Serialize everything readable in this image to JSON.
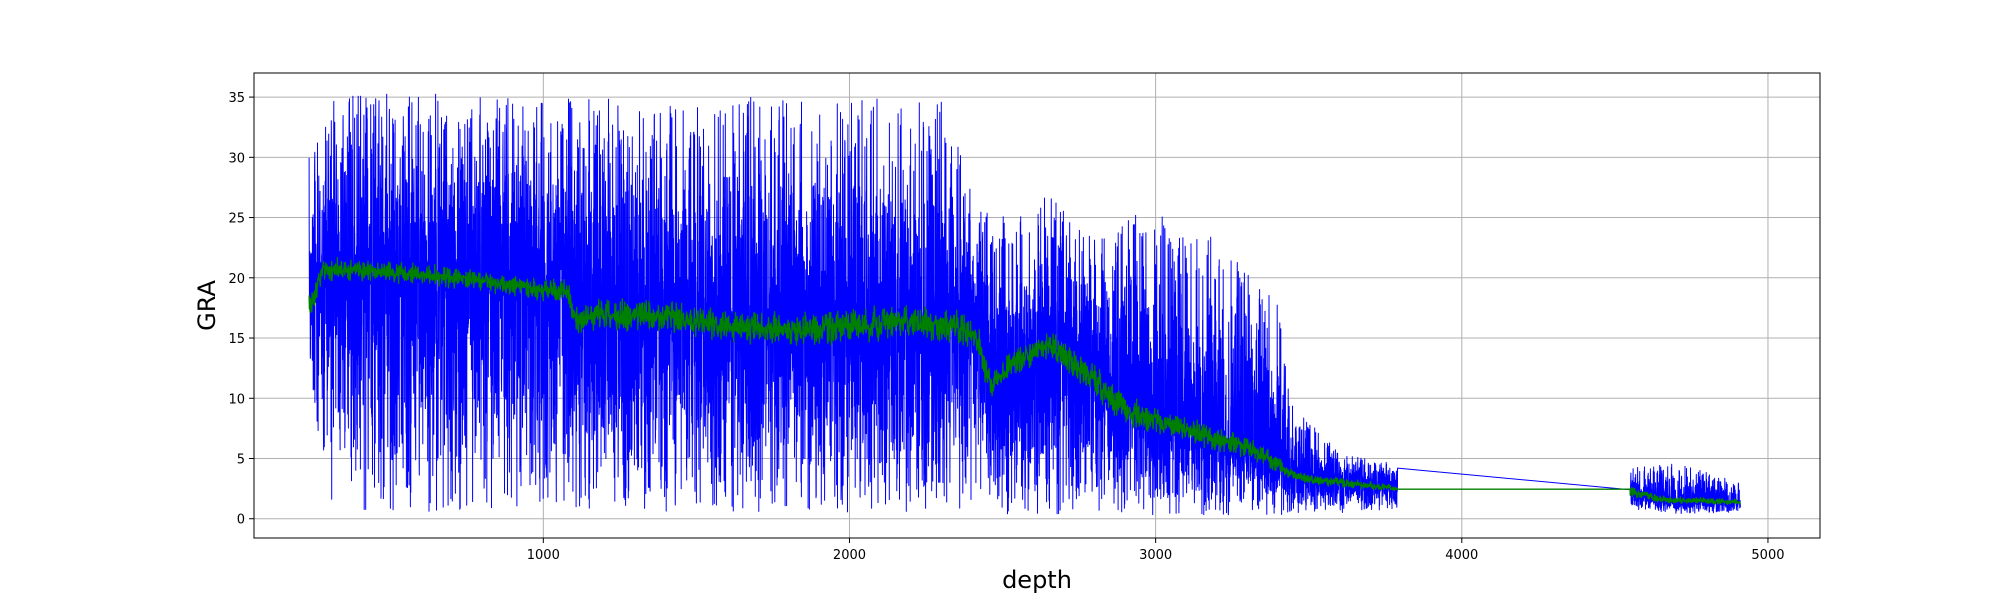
{
  "chart_data": {
    "type": "line",
    "title": "",
    "xlabel": "depth",
    "ylabel": "GRA",
    "xlim": [
      55,
      5170
    ],
    "ylim": [
      -1.6,
      37.0
    ],
    "xticks": [
      1000,
      2000,
      3000,
      4000,
      5000
    ],
    "yticks": [
      0,
      5,
      10,
      15,
      20,
      25,
      30,
      35
    ],
    "grid": true,
    "legend": "none",
    "series": [
      {
        "color": "#0000ff",
        "style": "noisy-raw-signal",
        "segments": [
          {
            "x_start": 235,
            "x_end": 3790,
            "trend_x": [
              235,
              300,
              600,
              900,
              1080,
              1100,
              1400,
              1600,
              2000,
              2300,
              2420,
              2450,
              2650,
              2800,
              3000,
              3200,
              3400,
              3450,
              3600,
              3790
            ],
            "trend_y": [
              18.5,
              21,
              20.5,
              20,
              19.5,
              17.5,
              17,
              16,
              16.5,
              16.5,
              16,
              11,
              14.5,
              11,
              8,
              6.5,
              5,
              3.6,
              3,
              2.8
            ],
            "min_envelope": [
              11,
              0.4,
              0.5,
              0.5,
              1.5,
              0.5,
              0.5,
              0.5,
              0.5,
              0.5,
              0.5,
              0.4,
              0.3,
              0.3,
              0.3,
              0.3,
              0.3,
              0.5,
              0.5,
              0.8
            ],
            "max_envelope": [
              30,
              35.3,
              35.3,
              35.3,
              35.0,
              35.0,
              35.0,
              35.0,
              35.0,
              35.0,
              27.0,
              25.5,
              27.0,
              23.5,
              26.0,
              23.5,
              18.0,
              9.4,
              5.5,
              4.5
            ]
          },
          {
            "x_start": 3790,
            "x_end": 4550,
            "trend_x": [
              3790,
              4550
            ],
            "trend_y": [
              4.2,
              2.4
            ],
            "min_envelope": [
              4.2,
              2.4
            ],
            "max_envelope": [
              4.2,
              2.4
            ]
          },
          {
            "x_start": 4550,
            "x_end": 4910,
            "trend_x": [
              4550,
              4700,
              4910
            ],
            "trend_y": [
              2.0,
              1.4,
              1.4
            ],
            "min_envelope": [
              0.8,
              0.4,
              0.5
            ],
            "max_envelope": [
              4.3,
              4.6,
              3.0
            ]
          }
        ]
      },
      {
        "color": "#008000",
        "style": "smoothed",
        "segments": [
          {
            "x_start": 235,
            "x_end": 3790,
            "trend_x": [
              235,
              280,
              320,
              600,
              800,
              1000,
              1080,
              1100,
              1200,
              1400,
              1600,
              1800,
              2000,
              2200,
              2350,
              2420,
              2460,
              2520,
              2650,
              2700,
              2800,
              2900,
              3000,
              3100,
              3200,
              3300,
              3400,
              3450,
              3500,
              3600,
              3790
            ],
            "trend_y": [
              17.5,
              20.5,
              20.8,
              20.3,
              19.8,
              19.0,
              19.0,
              16.5,
              17.0,
              16.8,
              16.0,
              15.7,
              16.0,
              16.3,
              16.0,
              15.0,
              11.0,
              12.5,
              14.5,
              13.5,
              11.5,
              9.0,
              8.0,
              7.5,
              6.5,
              6.0,
              4.5,
              3.6,
              3.3,
              3.0,
              2.5
            ],
            "noise": [
              0.8,
              0.6,
              0.6,
              0.6,
              0.6,
              0.6,
              0.6,
              0.8,
              0.9,
              0.9,
              0.9,
              0.9,
              1.0,
              1.0,
              1.0,
              1.0,
              0.8,
              0.8,
              0.8,
              0.8,
              0.9,
              0.9,
              0.8,
              0.7,
              0.7,
              0.6,
              0.5,
              0.3,
              0.3,
              0.3,
              0.2
            ]
          },
          {
            "x_start": 3790,
            "x_end": 4550,
            "trend_x": [
              3790,
              4550
            ],
            "trend_y": [
              2.45,
              2.45
            ],
            "noise": [
              0,
              0
            ]
          },
          {
            "x_start": 4550,
            "x_end": 4910,
            "trend_x": [
              4550,
              4650,
              4910
            ],
            "trend_y": [
              2.3,
              1.6,
              1.4
            ],
            "noise": [
              0.3,
              0.2,
              0.15
            ]
          }
        ]
      }
    ]
  }
}
